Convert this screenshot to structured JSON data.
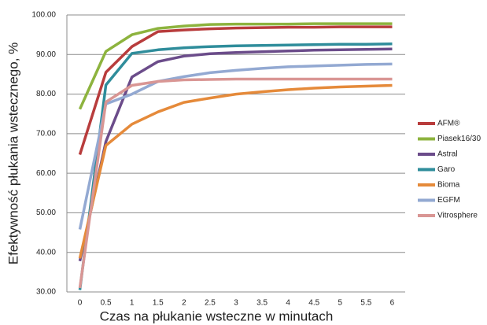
{
  "chart_data": {
    "type": "line",
    "x_label": "Czas na płukanie wsteczne w minutach",
    "y_label": "Efektywność płukania wstecznego, %",
    "categories": [
      "0",
      "0.5",
      "1",
      "1.5",
      "2",
      "2.5",
      "3",
      "3.5",
      "4",
      "4.5",
      "5",
      "5.5",
      "6"
    ],
    "series": [
      {
        "name": "AFM®",
        "color": "#b83c3c",
        "values": [
          64.7,
          85.5,
          92,
          95.8,
          96.2,
          96.5,
          96.7,
          96.8,
          96.9,
          96.9,
          97,
          97,
          97
        ]
      },
      {
        "name": "Piasek16/30",
        "color": "#8db33e",
        "values": [
          76.2,
          90.8,
          95,
          96.6,
          97.2,
          97.6,
          97.7,
          97.7,
          97.7,
          97.8,
          97.8,
          97.8,
          97.8
        ]
      },
      {
        "name": "Astral",
        "color": "#6b4c8a",
        "values": [
          37.8,
          68,
          84.3,
          88.2,
          89.6,
          90.2,
          90.5,
          90.7,
          90.9,
          91.1,
          91.2,
          91.3,
          91.4
        ]
      },
      {
        "name": "Garo",
        "color": "#2f8d9b",
        "values": [
          30.5,
          82.3,
          90.3,
          91.2,
          91.7,
          92,
          92.2,
          92.3,
          92.4,
          92.5,
          92.6,
          92.6,
          92.7
        ]
      },
      {
        "name": "Bioma",
        "color": "#e58a3a",
        "values": [
          38.5,
          67,
          72.4,
          75.5,
          77.9,
          79,
          80,
          80.6,
          81.1,
          81.5,
          81.8,
          82,
          82.2
        ]
      },
      {
        "name": "EGFM",
        "color": "#93a9d2",
        "values": [
          45.8,
          77.5,
          80,
          83.2,
          84.4,
          85.4,
          86,
          86.5,
          86.9,
          87.1,
          87.3,
          87.5,
          87.6
        ]
      },
      {
        "name": "Vitrosphere",
        "color": "#d99694",
        "values": [
          31,
          78,
          82.2,
          83.2,
          83.6,
          83.7,
          83.8,
          83.8,
          83.8,
          83.8,
          83.8,
          83.8,
          83.8
        ]
      }
    ],
    "ylim": [
      30,
      100
    ],
    "yticks": [
      {
        "value": 30,
        "label": "30.00"
      },
      {
        "value": 40,
        "label": "40.00"
      },
      {
        "value": 50,
        "label": "50.00"
      },
      {
        "value": 60,
        "label": "60.00"
      },
      {
        "value": 70,
        "label": "70.00"
      },
      {
        "value": 80,
        "label": "80.00"
      },
      {
        "value": 90,
        "label": "90.00"
      },
      {
        "value": 100,
        "label": "100.00"
      }
    ],
    "grid": true,
    "legend": "right"
  }
}
